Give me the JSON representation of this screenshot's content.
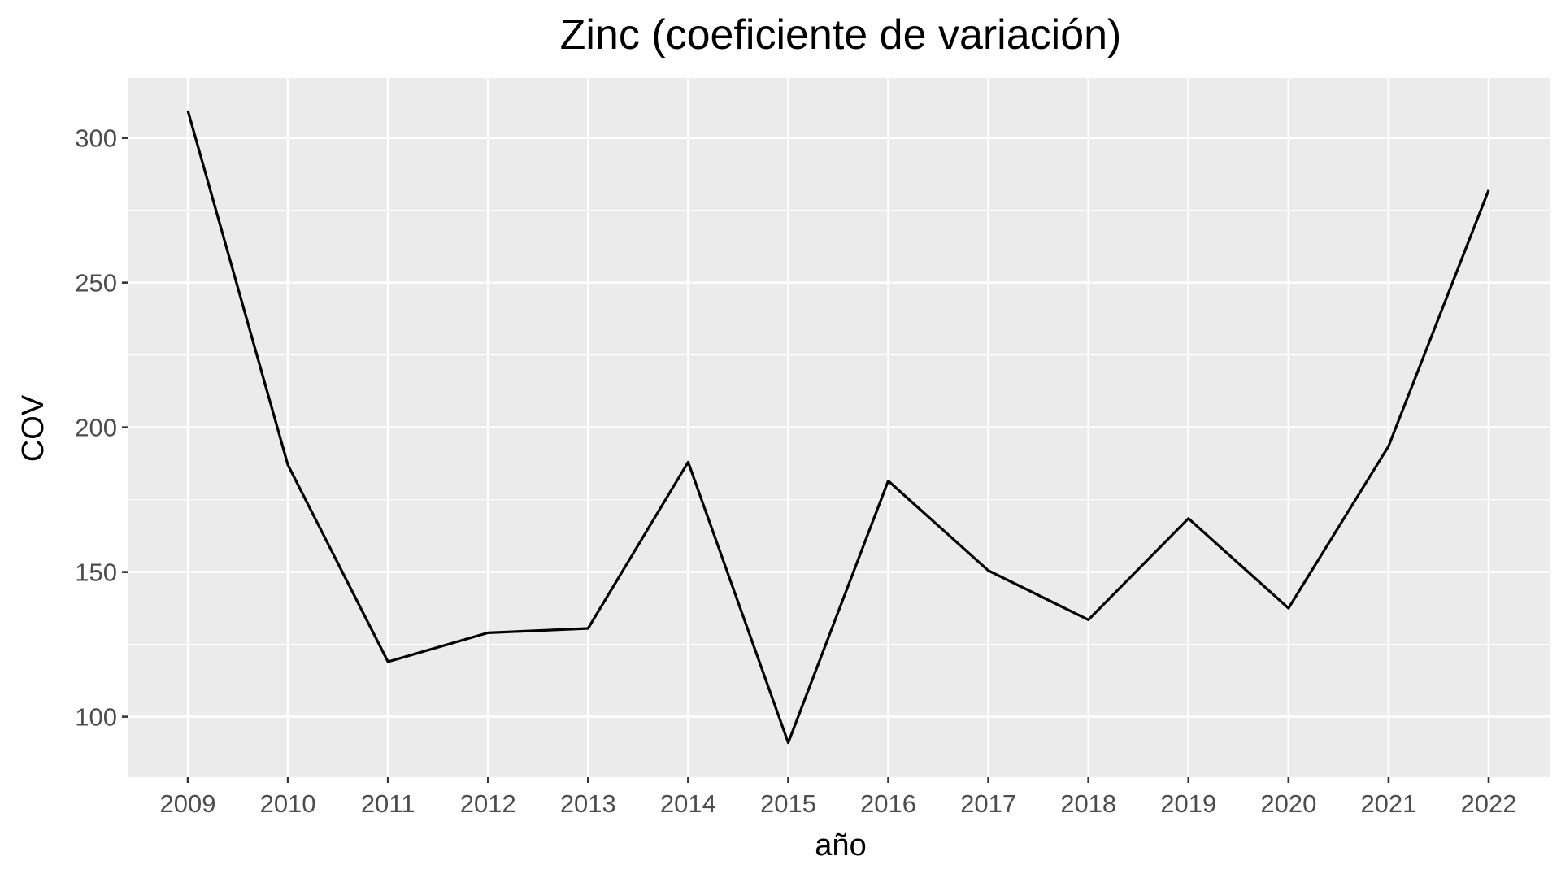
{
  "chart_data": {
    "type": "line",
    "title": "Zinc (coeficiente de variación)",
    "xlabel": "año",
    "ylabel": "COV",
    "x": [
      "2009",
      "2010",
      "2011",
      "2012",
      "2013",
      "2014",
      "2015",
      "2016",
      "2017",
      "2018",
      "2019",
      "2020",
      "2021",
      "2022"
    ],
    "series": [
      {
        "values": [
          309.5,
          187,
          119,
          129,
          130.5,
          188,
          91,
          181.5,
          150.5,
          133.5,
          168.5,
          137.5,
          193.5,
          282
        ]
      }
    ],
    "yticks": [
      100,
      150,
      200,
      250,
      300
    ],
    "ytick_labels": [
      "100",
      "150",
      "200",
      "250",
      "300"
    ],
    "ylim": [
      79.1,
      320.7
    ],
    "grid": true,
    "legend": "none",
    "colors": {
      "panel": "#ebebeb",
      "grid": "#ffffff",
      "line": "#000000",
      "tick_text": "#4d4d4d"
    }
  }
}
